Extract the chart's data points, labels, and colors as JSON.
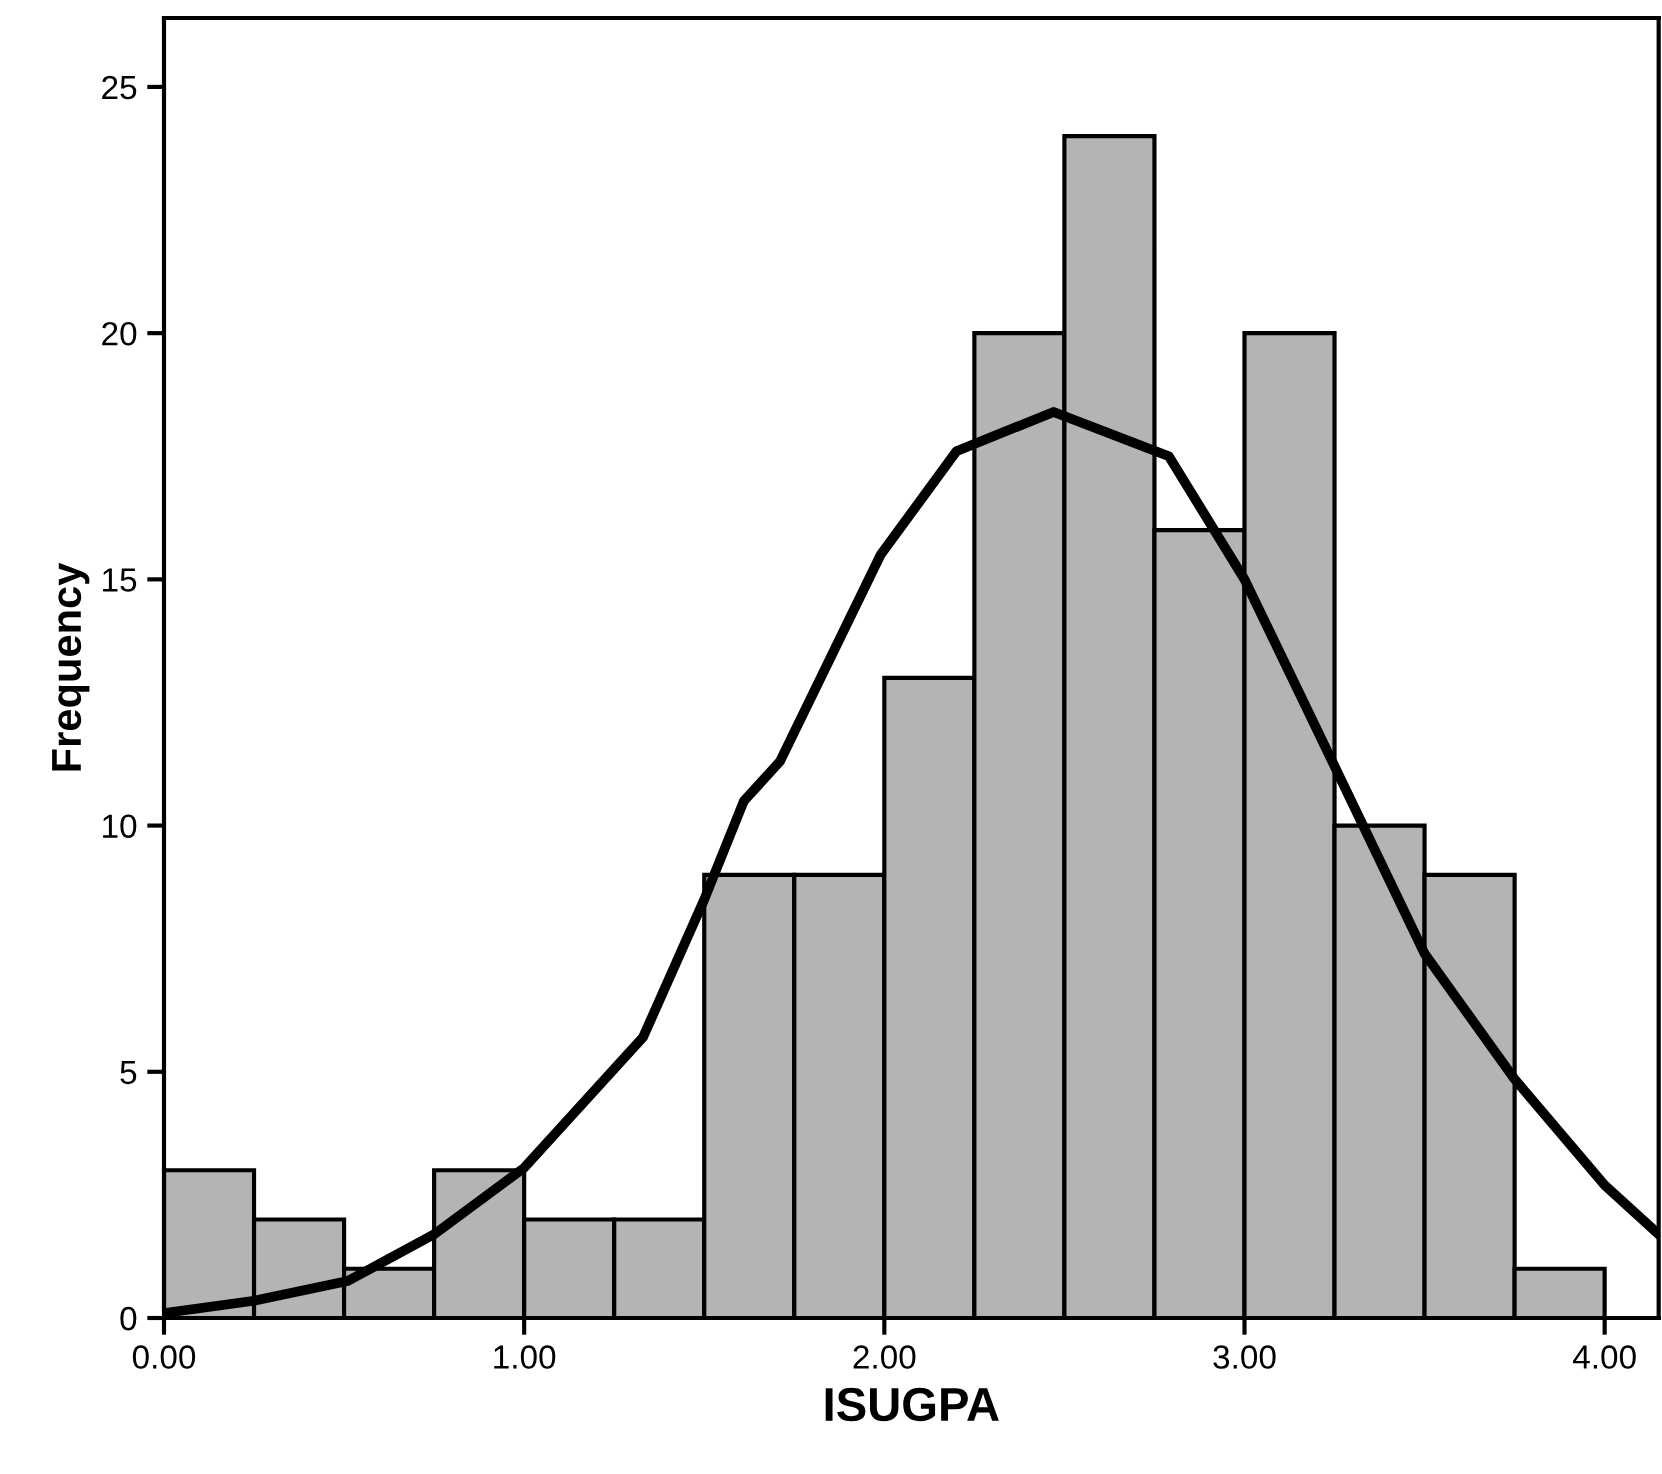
{
  "chart_data": {
    "type": "histogram",
    "xlabel": "ISUGPA",
    "ylabel": "Frequency",
    "bins": [
      0,
      0.25,
      0.5,
      0.75,
      1.0,
      1.25,
      1.5,
      1.75,
      2.0,
      2.25,
      2.5,
      2.75,
      3.0,
      3.25,
      3.5,
      3.75,
      4.0
    ],
    "values": [
      3,
      2,
      1,
      3,
      2,
      2,
      9,
      9,
      13,
      20,
      24,
      16,
      20,
      10,
      9,
      1
    ],
    "color": "#b4b4b4",
    "series": [
      {
        "type": "line",
        "color": "#000000",
        "x": [
          0,
          0.25,
          0.51,
          0.75,
          1.0,
          1.33,
          1.5,
          1.61,
          1.71,
          1.99,
          2.2,
          2.47,
          2.79,
          3.0,
          3.29,
          3.5,
          3.75,
          4.0,
          4.15
        ],
        "values": [
          0.1,
          0.35,
          0.75,
          1.7,
          3.05,
          5.7,
          8.5,
          10.5,
          11.3,
          15.5,
          17.6,
          18.4,
          17.5,
          15.0,
          10.6,
          7.4,
          4.85,
          2.7,
          1.7
        ]
      }
    ],
    "xlim": [
      0,
      4.15
    ],
    "ylim": [
      0,
      26.4
    ],
    "xticks": [
      {
        "value": 0,
        "label": "0.00"
      },
      {
        "value": 1,
        "label": "1.00"
      },
      {
        "value": 2,
        "label": "2.00"
      },
      {
        "value": 3,
        "label": "3.00"
      },
      {
        "value": 4,
        "label": "4.00"
      }
    ],
    "yticks": [
      0,
      5,
      10,
      15,
      20,
      25
    ],
    "grid": false,
    "legend": false
  }
}
